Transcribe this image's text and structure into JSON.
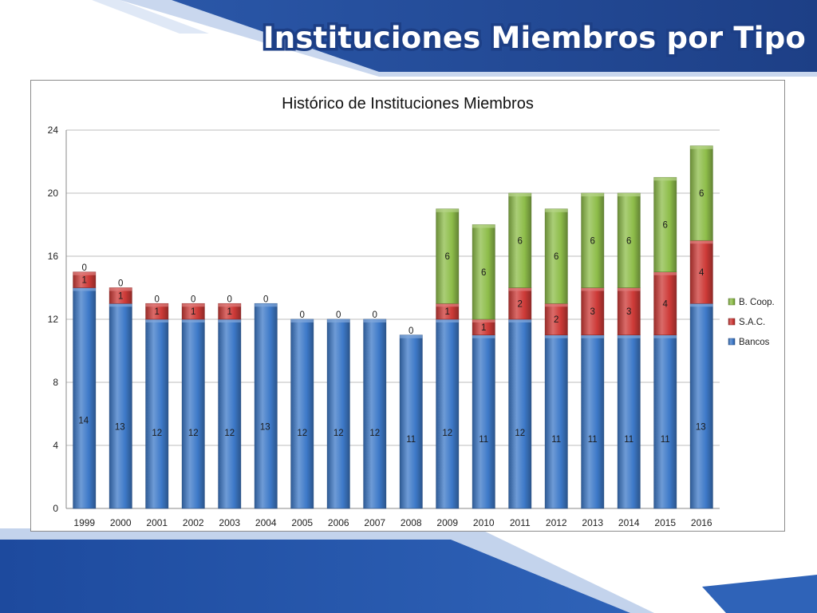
{
  "slide": {
    "title": "Instituciones Miembros por Tipo"
  },
  "colors": {
    "primary": "#1d3f86",
    "bancos": "#3d79c8",
    "sac": "#cd3a37",
    "bcoop": "#8ebd4a"
  },
  "chart_data": {
    "type": "bar",
    "stacked": true,
    "title": "Histórico de Instituciones Miembros",
    "xlabel": "",
    "ylabel": "",
    "categories": [
      "1999",
      "2000",
      "2001",
      "2002",
      "2003",
      "2004",
      "2005",
      "2006",
      "2007",
      "2008",
      "2009",
      "2010",
      "2011",
      "2012",
      "2013",
      "2014",
      "2015",
      "2016"
    ],
    "series": [
      {
        "name": "Bancos",
        "color": "#3d79c8",
        "values": [
          14,
          13,
          12,
          12,
          12,
          13,
          12,
          12,
          12,
          11,
          12,
          11,
          12,
          11,
          11,
          11,
          11,
          13
        ]
      },
      {
        "name": "S.A.C.",
        "color": "#cd3a37",
        "values": [
          1,
          1,
          1,
          1,
          1,
          0,
          0,
          0,
          0,
          0,
          1,
          1,
          2,
          2,
          3,
          3,
          4,
          4
        ]
      },
      {
        "name": "B. Coop.",
        "color": "#8ebd4a",
        "values": [
          0,
          0,
          0,
          0,
          0,
          null,
          null,
          null,
          null,
          null,
          6,
          6,
          6,
          6,
          6,
          6,
          6,
          6
        ]
      }
    ],
    "ylim": [
      0,
      24
    ],
    "yticks": [
      0,
      4,
      8,
      12,
      16,
      20,
      24
    ],
    "grid": true,
    "legend": "right",
    "legend_order": [
      "B. Coop.",
      "S.A.C.",
      "Bancos"
    ]
  }
}
